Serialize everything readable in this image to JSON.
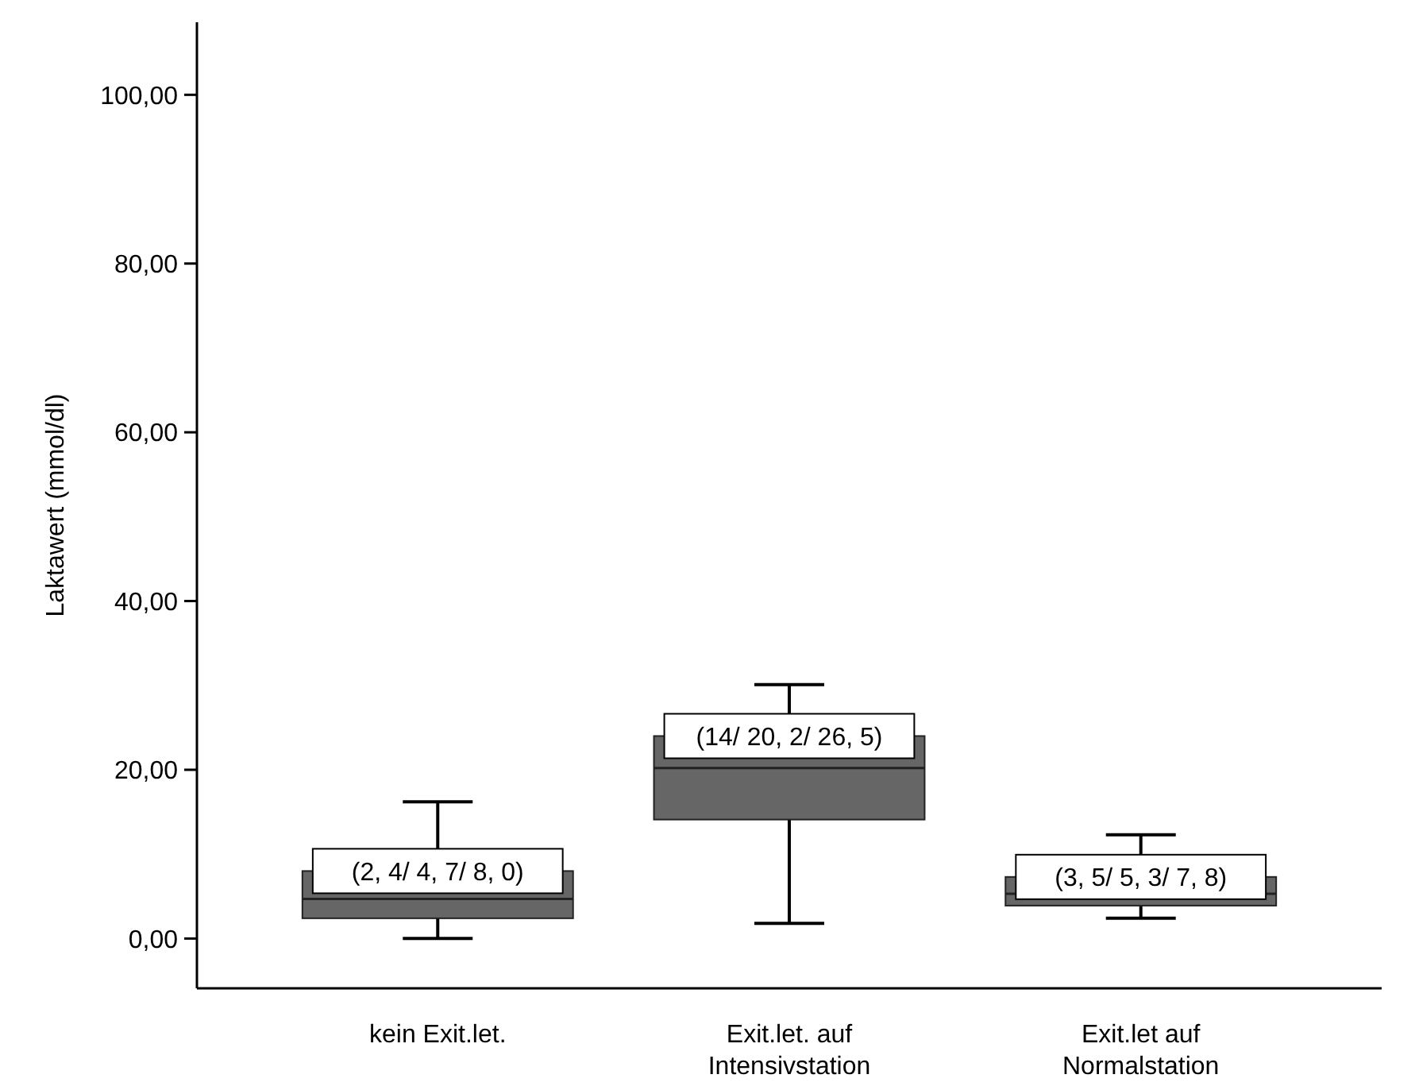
{
  "chart_data": {
    "type": "box",
    "ylabel": "Laktawert (mmol/dl)",
    "categories": [
      "kein Exit.let.",
      "Exit.let. auf\nIntensivstation",
      "Exit.let auf\nNormalstation"
    ],
    "color": "#666666",
    "boxes": [
      {
        "low": 0,
        "q1": 2.4,
        "median": 4.7,
        "q3": 8.0,
        "high": 16.2
      },
      {
        "low": 1.8,
        "q1": 14.1,
        "median": 20.2,
        "q3": 24.0,
        "high": 30.1
      },
      {
        "low": 2.4,
        "q1": 3.9,
        "median": 5.3,
        "q3": 7.3,
        "high": 12.3
      }
    ],
    "ylim": [
      -5.9,
      108.6
    ],
    "yticks": [
      {
        "value": 0,
        "label": "0,00"
      },
      {
        "value": 20,
        "label": "20,00"
      },
      {
        "value": 40,
        "label": "40,00"
      },
      {
        "value": 60,
        "label": "60,00"
      },
      {
        "value": 80,
        "label": "80,00"
      },
      {
        "value": 100,
        "label": "100,00"
      }
    ],
    "annotations": [
      {
        "text": "(2, 4/ 4, 7/ 8, 0)",
        "x": "kein Exit.let.",
        "y": 8.0
      },
      {
        "text": "(14/ 20, 2/ 26, 5)",
        "x": "Exit.let. auf\nIntensivstation",
        "y": 24.0
      },
      {
        "text": "(3, 5/ 5, 3/ 7, 8)",
        "x": "Exit.let auf\nNormalstation",
        "y": 7.3
      }
    ],
    "grid": false
  }
}
